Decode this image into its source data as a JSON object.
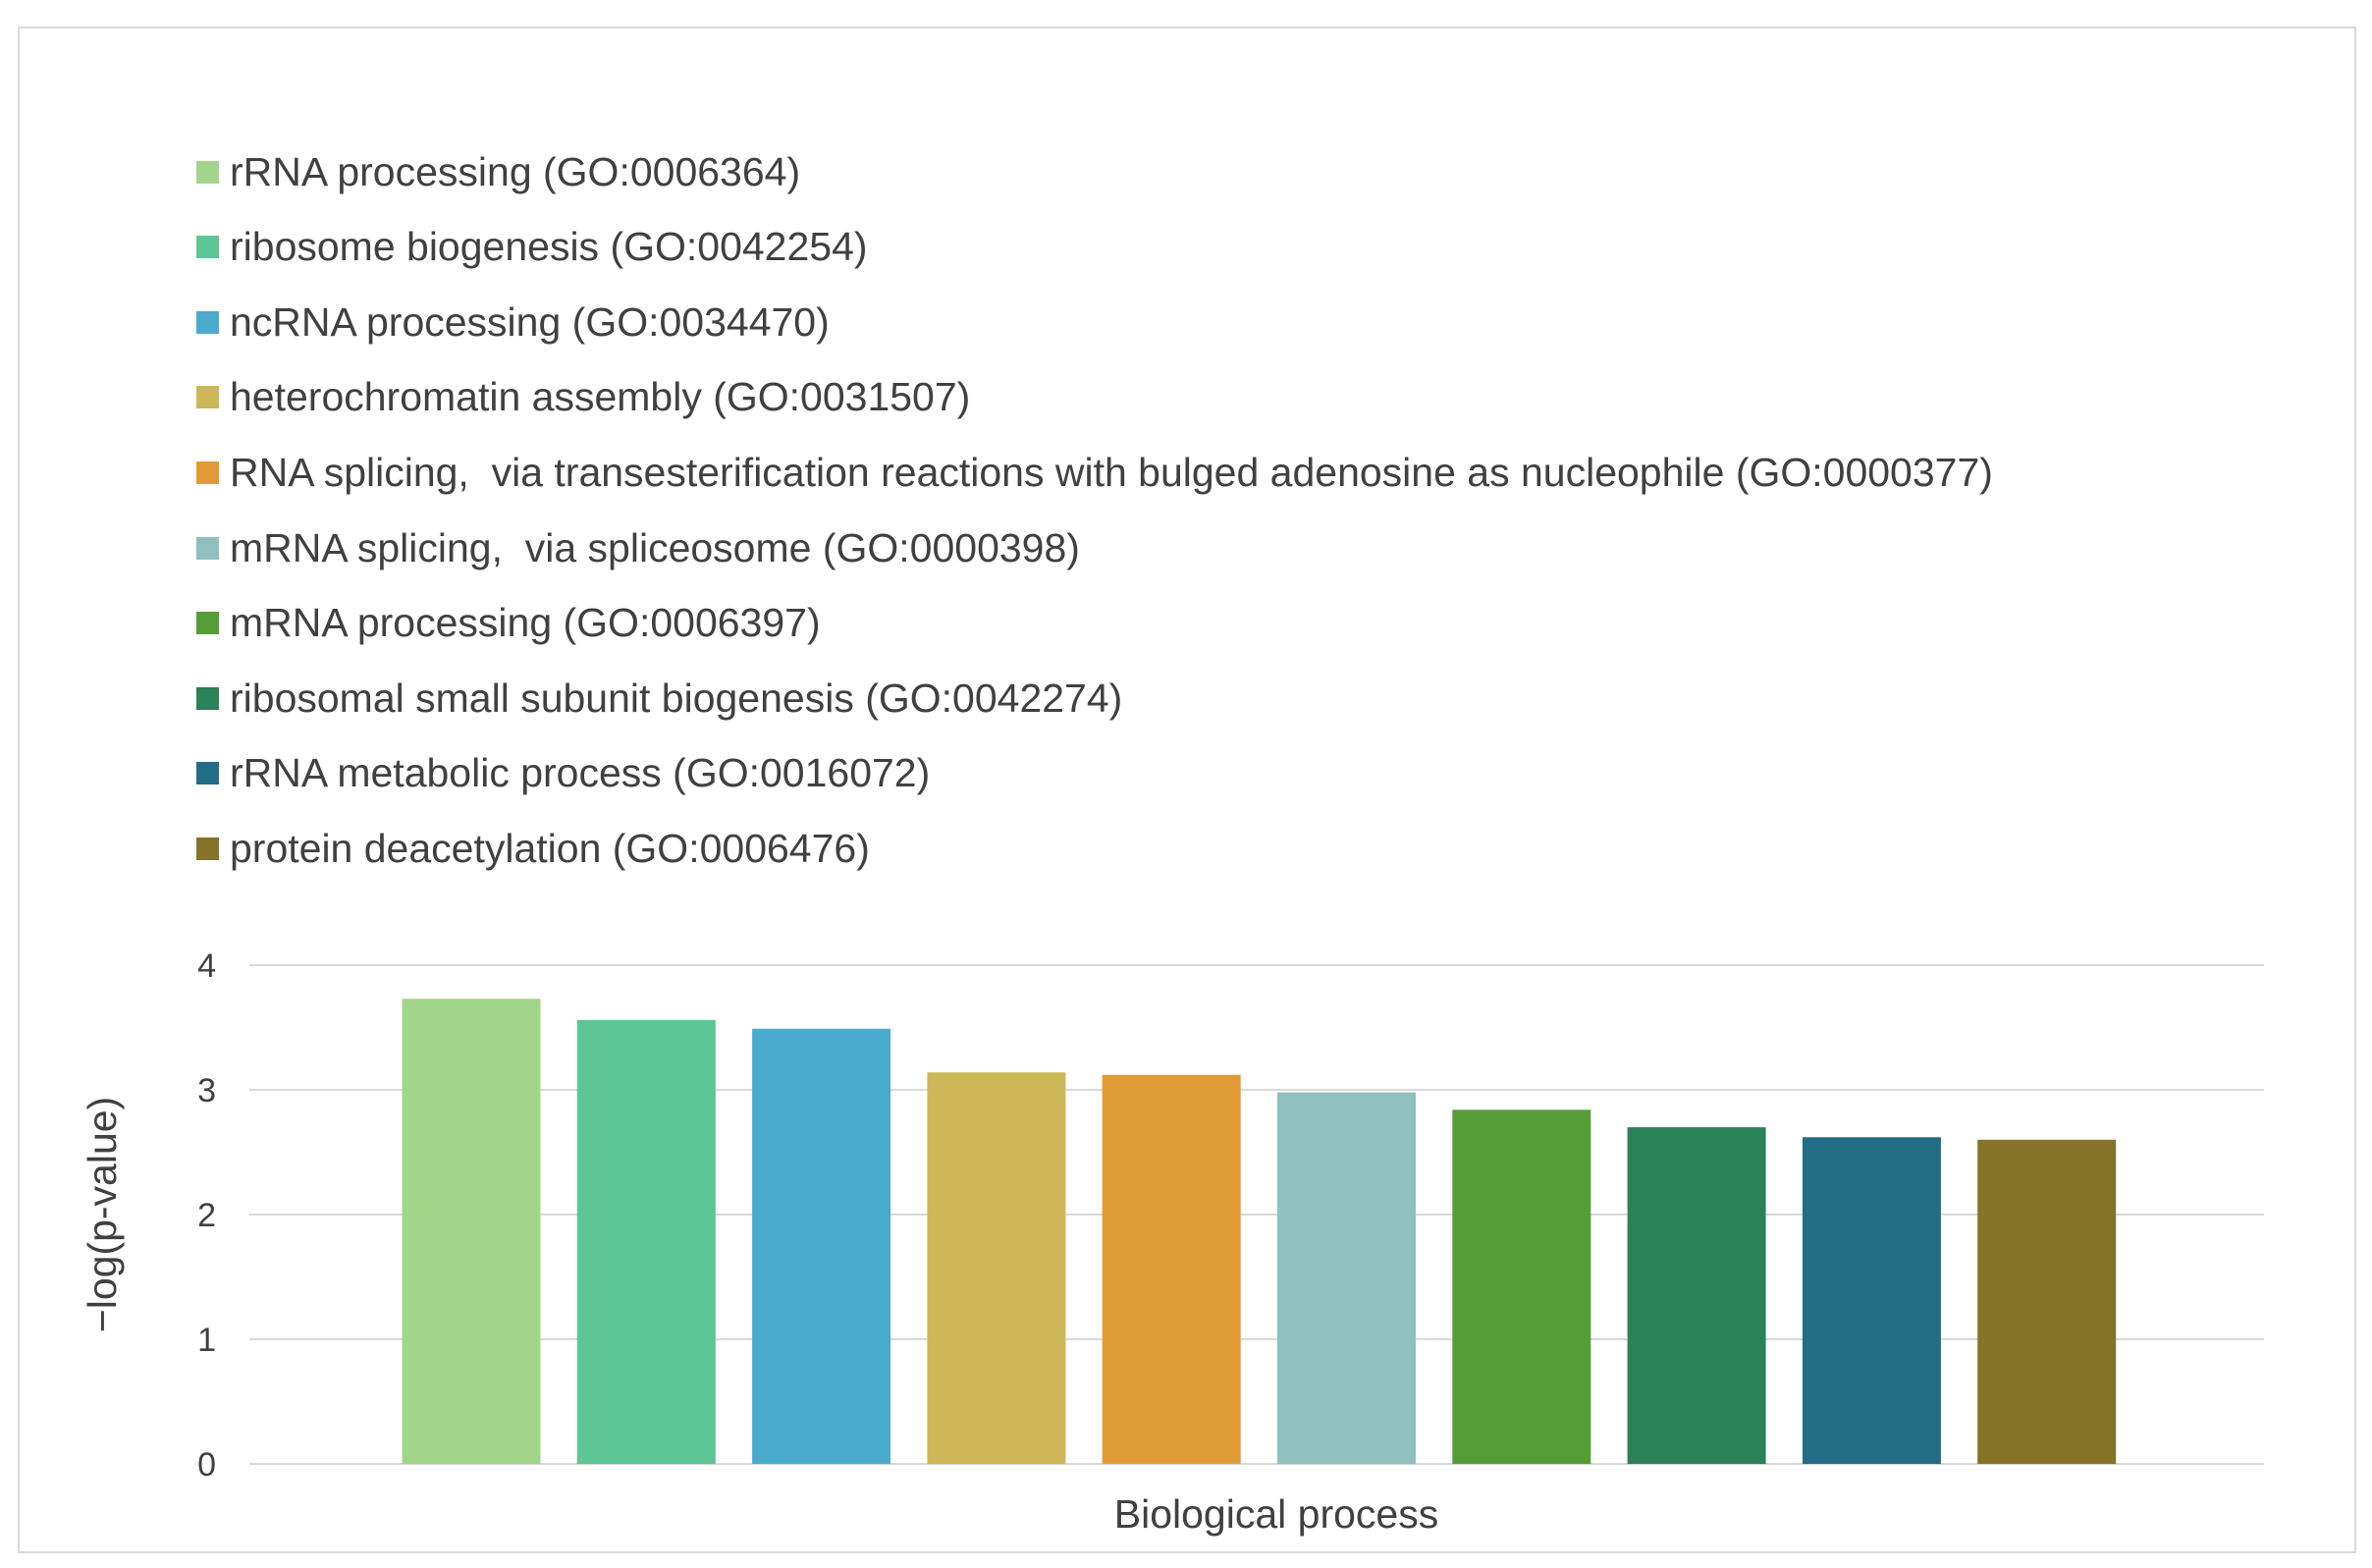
{
  "chart_data": {
    "type": "bar",
    "title": "",
    "xlabel": "Biological process",
    "ylabel": "−log(p-value)",
    "ylim": [
      0,
      4
    ],
    "yticks": [
      "0",
      "1",
      "2",
      "3",
      "4"
    ],
    "grid": true,
    "legend_position": "top-left",
    "series": [
      {
        "name": "rRNA processing (GO:0006364)",
        "value": 3.73,
        "color": "#a2d48a"
      },
      {
        "name": "ribosome biogenesis (GO:0042254)",
        "value": 3.56,
        "color": "#5ec595"
      },
      {
        "name": "ncRNA processing (GO:0034470)",
        "value": 3.49,
        "color": "#4aabcd"
      },
      {
        "name": "heterochromatin assembly (GO:0031507)",
        "value": 3.14,
        "color": "#cdb756"
      },
      {
        "name": "RNA splicing,  via transesterification reactions with bulged adenosine as nucleophile (GO:0000377)",
        "value": 3.12,
        "color": "#e19b36"
      },
      {
        "name": "mRNA splicing,  via spliceosome (GO:0000398)",
        "value": 2.98,
        "color": "#8fbfbf"
      },
      {
        "name": "mRNA processing (GO:0006397)",
        "value": 2.84,
        "color": "#569c37"
      },
      {
        "name": "ribosomal small subunit biogenesis (GO:0042274)",
        "value": 2.7,
        "color": "#2b8158"
      },
      {
        "name": "rRNA metabolic process (GO:0016072)",
        "value": 2.62,
        "color": "#226c86"
      },
      {
        "name": "protein deacetylation (GO:0006476)",
        "value": 2.6,
        "color": "#857428"
      }
    ]
  }
}
